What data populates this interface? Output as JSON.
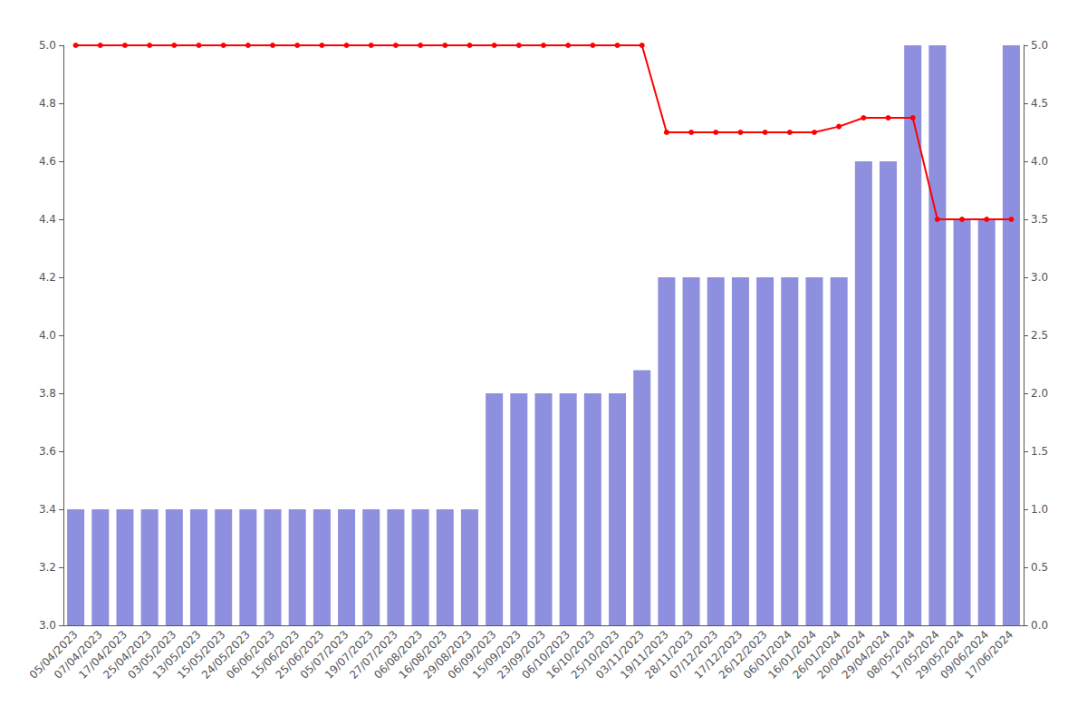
{
  "chart_data": {
    "type": "bar",
    "categories": [
      "05/04/2023",
      "07/04/2023",
      "17/04/2023",
      "25/04/2023",
      "03/05/2023",
      "13/05/2023",
      "15/05/2023",
      "24/05/2023",
      "06/06/2023",
      "15/06/2023",
      "25/06/2023",
      "05/07/2023",
      "19/07/2023",
      "27/07/2023",
      "06/08/2023",
      "16/08/2023",
      "29/08/2023",
      "06/09/2023",
      "15/09/2023",
      "23/09/2023",
      "06/10/2023",
      "16/10/2023",
      "25/10/2023",
      "03/11/2023",
      "19/11/2023",
      "28/11/2023",
      "07/12/2023",
      "17/12/2023",
      "26/12/2023",
      "06/01/2024",
      "16/01/2024",
      "26/01/2024",
      "20/04/2024",
      "29/04/2024",
      "08/05/2024",
      "17/05/2024",
      "29/05/2024",
      "09/06/2024",
      "17/06/2024"
    ],
    "series": [
      {
        "type": "bar",
        "axis": "y2",
        "color": "#7b7bdb",
        "values": [
          1.0,
          1.0,
          1.0,
          1.0,
          1.0,
          1.0,
          1.0,
          1.0,
          1.0,
          1.0,
          1.0,
          1.0,
          1.0,
          1.0,
          1.0,
          1.0,
          1.0,
          2.0,
          2.0,
          2.0,
          2.0,
          2.0,
          2.0,
          2.2,
          3.0,
          3.0,
          3.0,
          3.0,
          3.0,
          3.0,
          3.0,
          3.0,
          4.0,
          4.0,
          5.0,
          5.0,
          3.5,
          3.5,
          5.0
        ]
      },
      {
        "type": "line",
        "color": "#ff0000",
        "marker": "circle",
        "values": [
          5.0,
          5.0,
          5.0,
          5.0,
          5.0,
          5.0,
          5.0,
          5.0,
          5.0,
          5.0,
          5.0,
          5.0,
          5.0,
          5.0,
          5.0,
          5.0,
          5.0,
          5.0,
          5.0,
          5.0,
          5.0,
          5.0,
          5.0,
          5.0,
          4.7,
          4.7,
          4.7,
          4.7,
          4.7,
          4.7,
          4.7,
          4.72,
          4.75,
          4.75,
          4.75,
          4.4,
          4.4,
          4.4,
          4.4
        ]
      }
    ],
    "ylim": [
      3.0,
      5.0
    ],
    "yticks": [
      {
        "value": 3.0,
        "label": "3.0"
      },
      3.2,
      3.4,
      3.6,
      3.8,
      {
        "value": 4.0,
        "label": "4.0"
      },
      4.2,
      4.4,
      4.6,
      4.8,
      {
        "value": 5.0,
        "label": "5.0"
      }
    ],
    "y2lim": [
      0,
      5
    ],
    "y2ticks": [
      {
        "value": 0,
        "label": "0.0"
      },
      0.5,
      {
        "value": 1.0,
        "label": "1.0"
      },
      1.5,
      {
        "value": 2.0,
        "label": "2.0"
      },
      2.5,
      {
        "value": 3.0,
        "label": "3.0"
      },
      3.5,
      {
        "value": 4.0,
        "label": "4.0"
      },
      4.5,
      {
        "value": 5.0,
        "label": "5.0"
      }
    ],
    "grid": false
  }
}
